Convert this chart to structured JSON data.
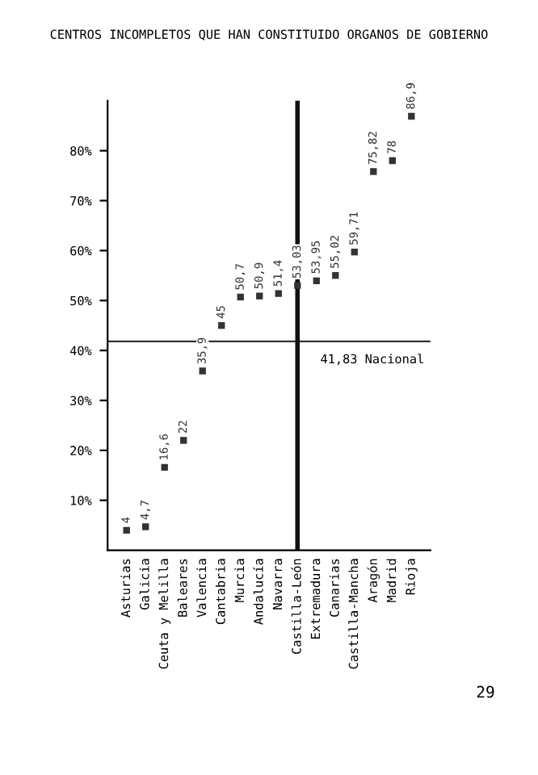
{
  "chart_data": {
    "type": "scatter",
    "title": "CENTROS INCOMPLETOS QUE HAN CONSTITUIDO ORGANOS DE GOBIERNO",
    "categories": [
      "Asturias",
      "Galicia",
      "Ceuta y Melilla",
      "Baleares",
      "Valencia",
      "Cantabria",
      "Murcia",
      "Andalucía",
      "Navarra",
      "Castilla-León",
      "Extremadura",
      "Canarias",
      "Castilla-Mancha",
      "Aragón",
      "Madrid",
      "Rioja"
    ],
    "series": [
      {
        "color": "#333333",
        "values": [
          4,
          4.7,
          16.6,
          22,
          35.9,
          45,
          50.7,
          50.9,
          51.4,
          53.03,
          53.95,
          55.02,
          59.71,
          75.82,
          78,
          86.9
        ],
        "value_labels": [
          "4",
          "4,7",
          "16,6",
          "22",
          "35,9",
          "45",
          "50,7",
          "50,9",
          "51,4",
          "53,03",
          "53,95",
          "55,02",
          "59,71",
          "75,82",
          "78",
          "86,9"
        ]
      }
    ],
    "ylim": [
      0,
      90
    ],
    "yticks": [
      {
        "value": 10,
        "label": "10%"
      },
      {
        "value": 20,
        "label": "20%"
      },
      {
        "value": 30,
        "label": "30%"
      },
      {
        "value": 40,
        "label": "40%"
      },
      {
        "value": 50,
        "label": "50%"
      },
      {
        "value": 60,
        "label": "60%"
      },
      {
        "value": 70,
        "label": "70%"
      },
      {
        "value": 80,
        "label": "80%"
      }
    ],
    "ref_lines": [
      {
        "axis": "y",
        "value": 41.83,
        "label": "41,83 Nacional",
        "color": "#333333"
      },
      {
        "axis": "x",
        "value": "Castilla-León",
        "color": "#111111"
      }
    ],
    "annotations": [
      "29"
    ],
    "grid": false,
    "legend": false
  }
}
